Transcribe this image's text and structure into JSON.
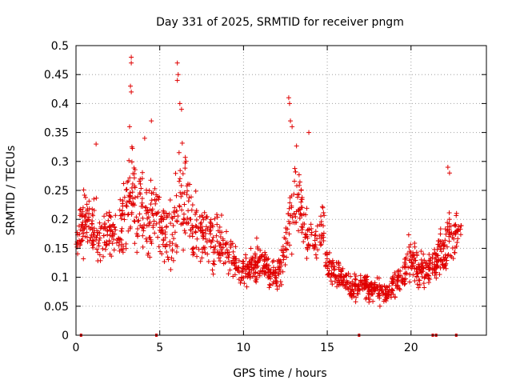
{
  "chart_data": {
    "type": "scatter",
    "title": "Day 331 of 2025, SRMTID for receiver pngm",
    "xlabel": "GPS time / hours",
    "ylabel": "SRMTID / TECUs",
    "xlim": [
      0,
      24.5
    ],
    "ylim": [
      0,
      0.5
    ],
    "x_ticks": [
      0,
      5,
      10,
      15,
      20
    ],
    "y_ticks": [
      0,
      0.05,
      0.1,
      0.15,
      0.2,
      0.25,
      0.3,
      0.35,
      0.4,
      0.45,
      0.5
    ],
    "x_tick_labels": [
      "0",
      "5",
      "10",
      "15",
      "20"
    ],
    "y_tick_labels": [
      "0",
      "0.05",
      "0.1",
      "0.15",
      "0.2",
      "0.25",
      "0.3",
      "0.35",
      "0.4",
      "0.45",
      "0.5"
    ],
    "grid": true,
    "marker": "+",
    "marker_color": "#e00000",
    "baseline_marks_x": [
      0.3,
      4.8,
      16.9,
      21.3,
      21.5,
      22.7
    ],
    "series": [
      {
        "name": "SRMTID",
        "profile": {
          "x": [
            0,
            0.5,
            1,
            1.5,
            2,
            2.5,
            3,
            3.3,
            3.6,
            4,
            4.5,
            5,
            5.5,
            6,
            6.3,
            6.7,
            7,
            7.5,
            8,
            8.5,
            9,
            9.5,
            10,
            10.5,
            11,
            11.5,
            12,
            12.5,
            12.8,
            13.2,
            13.6,
            14,
            14.5,
            14.8,
            15,
            15.5,
            16,
            16.5,
            17,
            17.5,
            18,
            18.5,
            19,
            19.5,
            20,
            20.5,
            21,
            21.5,
            22,
            22.5,
            23
          ],
          "center": [
            0.16,
            0.2,
            0.18,
            0.17,
            0.18,
            0.17,
            0.21,
            0.25,
            0.22,
            0.21,
            0.2,
            0.19,
            0.17,
            0.2,
            0.26,
            0.22,
            0.18,
            0.18,
            0.17,
            0.16,
            0.15,
            0.13,
            0.11,
            0.12,
            0.13,
            0.11,
            0.1,
            0.15,
            0.22,
            0.24,
            0.2,
            0.16,
            0.17,
            0.18,
            0.12,
            0.11,
            0.1,
            0.08,
            0.09,
            0.08,
            0.08,
            0.07,
            0.09,
            0.1,
            0.14,
            0.11,
            0.11,
            0.13,
            0.15,
            0.18,
            0.17
          ],
          "spread": [
            0.05,
            0.07,
            0.07,
            0.06,
            0.06,
            0.07,
            0.1,
            0.12,
            0.09,
            0.08,
            0.08,
            0.07,
            0.07,
            0.1,
            0.12,
            0.1,
            0.07,
            0.07,
            0.06,
            0.06,
            0.05,
            0.04,
            0.03,
            0.04,
            0.04,
            0.03,
            0.03,
            0.06,
            0.1,
            0.1,
            0.07,
            0.05,
            0.05,
            0.05,
            0.03,
            0.03,
            0.03,
            0.03,
            0.03,
            0.03,
            0.03,
            0.03,
            0.03,
            0.03,
            0.05,
            0.04,
            0.04,
            0.04,
            0.06,
            0.06,
            0.05
          ]
        },
        "peaks": [
          {
            "x": 3.3,
            "y": 0.48
          },
          {
            "x": 3.3,
            "y": 0.47
          },
          {
            "x": 3.25,
            "y": 0.43
          },
          {
            "x": 3.3,
            "y": 0.42
          },
          {
            "x": 3.2,
            "y": 0.36
          },
          {
            "x": 6.05,
            "y": 0.47
          },
          {
            "x": 6.1,
            "y": 0.45
          },
          {
            "x": 6.05,
            "y": 0.44
          },
          {
            "x": 6.2,
            "y": 0.4
          },
          {
            "x": 6.3,
            "y": 0.39
          },
          {
            "x": 12.7,
            "y": 0.41
          },
          {
            "x": 12.75,
            "y": 0.4
          },
          {
            "x": 12.8,
            "y": 0.37
          },
          {
            "x": 12.9,
            "y": 0.36
          },
          {
            "x": 13.9,
            "y": 0.35
          },
          {
            "x": 22.2,
            "y": 0.29
          },
          {
            "x": 22.3,
            "y": 0.28
          },
          {
            "x": 1.2,
            "y": 0.33
          },
          {
            "x": 4.1,
            "y": 0.34
          },
          {
            "x": 4.5,
            "y": 0.37
          }
        ]
      }
    ]
  }
}
